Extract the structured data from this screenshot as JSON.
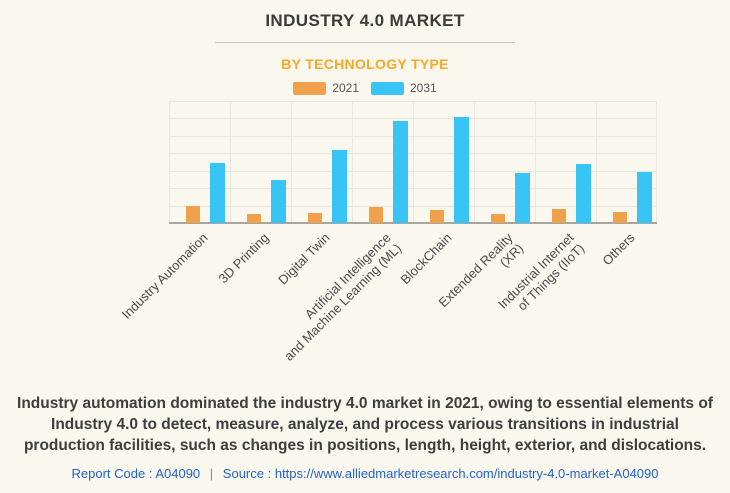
{
  "header": {
    "title": "INDUSTRY 4.0 MARKET",
    "subtitle": "BY TECHNOLOGY TYPE"
  },
  "legend": {
    "items": [
      {
        "label": "2021",
        "color": "#EFA14B"
      },
      {
        "label": "2031",
        "color": "#38C4F4"
      }
    ]
  },
  "chart_data": {
    "type": "bar",
    "title": "INDUSTRY 4.0 MARKET",
    "subtitle": "BY TECHNOLOGY TYPE",
    "categories": [
      "Industry Automation",
      "3D Printing",
      "Digital Twin",
      "Artificial Intelligence\nand Machine Learning (ML)",
      "BlockChain",
      "Extended Reality\n(XR)",
      "Industrial Internet\nof Things (IIoT)",
      "Others"
    ],
    "series": [
      {
        "name": "2021",
        "color": "#EFA14B",
        "values": [
          1.0,
          0.5,
          0.6,
          0.9,
          0.75,
          0.5,
          0.8,
          0.65
        ]
      },
      {
        "name": "2031",
        "color": "#38C4F4",
        "values": [
          3.45,
          2.45,
          4.2,
          5.85,
          6.1,
          2.9,
          3.4,
          2.95
        ]
      }
    ],
    "xlabel": "",
    "ylabel": "",
    "ylim": [
      0,
      7
    ],
    "value_scale": "relative gridline units - chart displays no numeric y-axis tick labels",
    "grid": true,
    "legend_position": "top-center"
  },
  "summary": {
    "text": "Industry automation dominated the industry 4.0 market in 2021, owing to essential elements of Industry 4.0 to detect, measure, analyze, and process various transitions in industrial production facilities, such as changes in positions, length, height, exterior, and dislocations."
  },
  "footer": {
    "report_code": "Report Code : A04090",
    "separator": "|",
    "source_label": "Source :",
    "source_url": "https://www.alliedmarketresearch.com/industry-4.0-market-A04090"
  },
  "colors": {
    "background": "#FAF7EF",
    "title_text": "#3B3B3B",
    "subtitle_text": "#F9A726",
    "series_2021": "#EFA14B",
    "series_2031": "#38C4F4",
    "gridline": "#E8E6DE",
    "axis_line": "#A8A69E",
    "axis_label_text": "#4A4A4A",
    "summary_text": "#3E3E3E",
    "footer_link": "#2463C7"
  }
}
